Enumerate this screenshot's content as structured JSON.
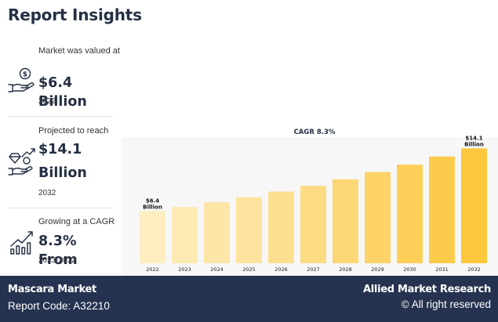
{
  "page": {
    "title": "Report Insights"
  },
  "stats": [
    {
      "label": "Market was valued at",
      "value": "$6.4 Billion",
      "year": "2022",
      "icon": "hand-money-icon"
    },
    {
      "label": "Projected to reach",
      "value": "$14.1 Billion",
      "year": "2032",
      "icon": "hand-diamond-growth-icon"
    },
    {
      "label": "Growing at a CAGR",
      "value": "8.3% From",
      "year": "2023-2032",
      "icon": "bar-chart-arrow-icon"
    }
  ],
  "chart_data": {
    "type": "bar",
    "title": "CAGR 8.3%",
    "categories": [
      "2022",
      "2023",
      "2024",
      "2025",
      "2026",
      "2027",
      "2028",
      "2029",
      "2030",
      "2031",
      "2032"
    ],
    "values": [
      6.4,
      6.9,
      7.5,
      8.1,
      8.8,
      9.5,
      10.3,
      11.2,
      12.1,
      13.1,
      14.1
    ],
    "units": "Billion USD",
    "annotations": [
      {
        "category": "2022",
        "lines": [
          "$6.4",
          "Billion"
        ]
      },
      {
        "category": "2032",
        "lines": [
          "$14.1",
          "Billion"
        ]
      }
    ],
    "ylim": [
      0,
      15
    ],
    "grid": false,
    "colors": [
      "#fdedc0",
      "#fde9b3",
      "#fde6a8",
      "#fde39d",
      "#fddf90",
      "#fddb83",
      "#fdd775",
      "#fdd368",
      "#fdcf59",
      "#fdcb4b",
      "#fdc73c"
    ]
  },
  "footer": {
    "market": "Mascara Market",
    "report_code": "Report Code: A32210",
    "brand": "Allied Market Research",
    "rights": "© All right reserved"
  }
}
